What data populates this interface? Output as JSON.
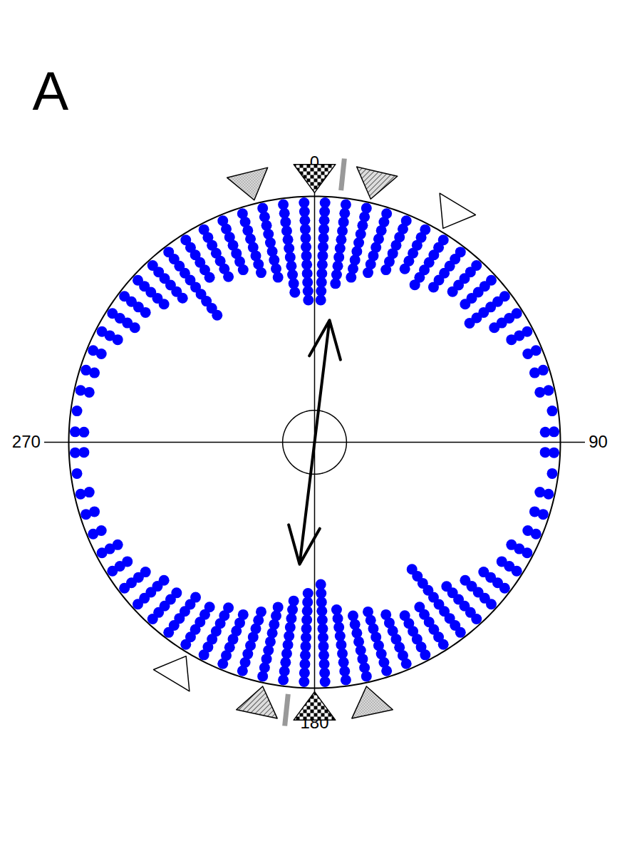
{
  "chart_data": {
    "type": "circular",
    "title": "A",
    "angle_range": [
      0,
      360
    ],
    "angle_ticks": [
      0,
      90,
      180,
      270
    ],
    "color": "#0000ff",
    "x": [
      2.5,
      7.5,
      12.5,
      17.5,
      22.5,
      27.5,
      32.5,
      37.5,
      42.5,
      47.5,
      52.5,
      57.5,
      62.5,
      67.5,
      72.5,
      77.5,
      82.5,
      87.5,
      92.5,
      97.5,
      102.5,
      107.5,
      112.5,
      117.5,
      122.5,
      127.5,
      132.5,
      137.5,
      142.5,
      147.5,
      152.5,
      157.5,
      162.5,
      167.5,
      172.5,
      177.5,
      182.5,
      187.5,
      192.5,
      197.5,
      202.5,
      207.5,
      212.5,
      217.5,
      222.5,
      227.5,
      232.5,
      237.5,
      242.5,
      247.5,
      252.5,
      257.5,
      262.5,
      267.5,
      272.5,
      277.5,
      282.5,
      287.5,
      292.5,
      297.5,
      302.5,
      307.5,
      312.5,
      317.5,
      322.5,
      327.5,
      332.5,
      337.5,
      342.5,
      347.5,
      352.5,
      357.5
    ],
    "values": [
      12,
      10,
      9,
      8,
      7,
      6,
      7,
      6,
      5,
      5,
      6,
      4,
      3,
      2,
      2,
      2,
      1,
      2,
      2,
      1,
      2,
      2,
      2,
      3,
      3,
      4,
      5,
      6,
      10,
      6,
      6,
      7,
      8,
      8,
      9,
      12,
      11,
      10,
      9,
      8,
      7,
      7,
      6,
      6,
      5,
      5,
      4,
      3,
      3,
      2,
      2,
      2,
      1,
      2,
      2,
      1,
      2,
      2,
      2,
      3,
      4,
      4,
      5,
      6,
      10,
      6,
      7,
      7,
      8,
      9,
      11,
      12
    ],
    "mean_vector": {
      "directions": [
        7,
        187
      ],
      "length": 0.5
    },
    "critical_radius": 0.13,
    "references": [
      {
        "marker": "line",
        "color": "#999999",
        "angles": [
          6,
          186
        ]
      },
      {
        "marker": "dotted",
        "angles": [
          346,
          168
        ]
      },
      {
        "marker": "checkered",
        "angles": [
          0,
          180
        ]
      },
      {
        "marker": "hatched",
        "angles": [
          13,
          192
        ]
      },
      {
        "marker": "open",
        "angles": [
          31,
          211
        ]
      }
    ]
  }
}
